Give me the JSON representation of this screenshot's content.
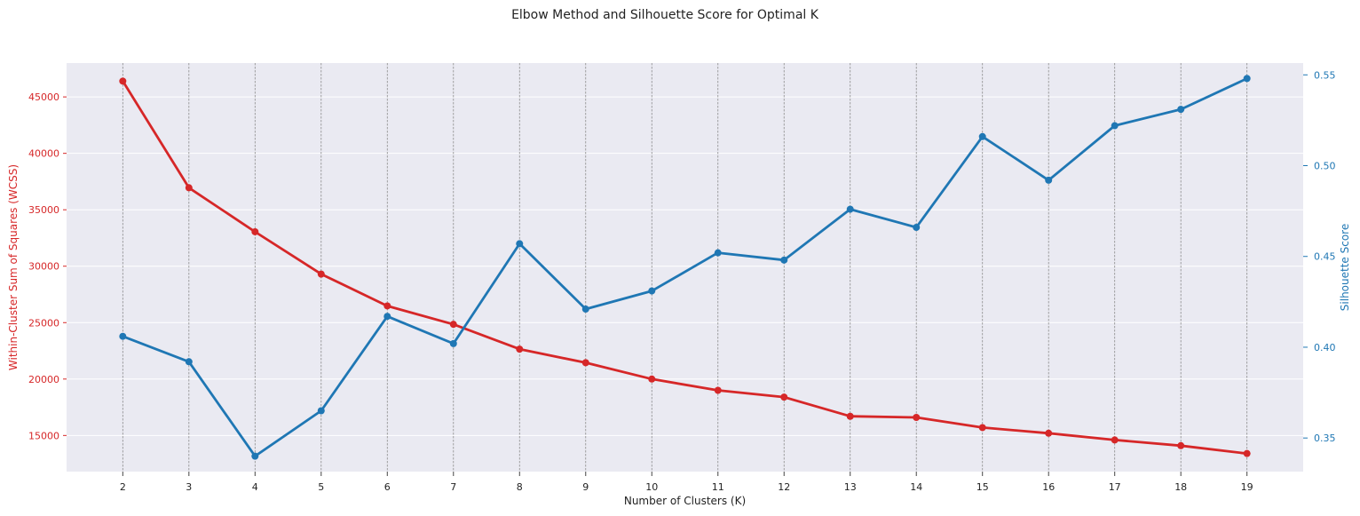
{
  "chart_data": {
    "type": "line",
    "title": "Elbow Method and Silhouette Score for Optimal K",
    "xlabel": "Number of Clusters (K)",
    "ylabel_left": "Within-Cluster Sum of Squares (WCSS)",
    "ylabel_right": "Silhouette Score",
    "x": [
      2,
      3,
      4,
      5,
      6,
      7,
      8,
      9,
      10,
      11,
      12,
      13,
      14,
      15,
      16,
      17,
      18,
      19
    ],
    "x_ticks": [
      "2",
      "3",
      "4",
      "5",
      "6",
      "7",
      "8",
      "9",
      "10",
      "11",
      "12",
      "13",
      "14",
      "15",
      "16",
      "17",
      "18",
      "19"
    ],
    "xlim": [
      1.15,
      19.85
    ],
    "ylim_left": [
      11800,
      48000
    ],
    "yticks_left": [
      "15000",
      "20000",
      "25000",
      "30000",
      "35000",
      "40000",
      "45000"
    ],
    "ylim_right": [
      0.3315,
      0.5565
    ],
    "yticks_right": [
      "0.35",
      "0.40",
      "0.45",
      "0.50",
      "0.55"
    ],
    "grid": true,
    "series": [
      {
        "axis": "left",
        "color": "#d62728",
        "values": [
          46400,
          36950,
          33050,
          29300,
          26480,
          24850,
          22650,
          21450,
          20000,
          19000,
          18400,
          16700,
          16600,
          15700,
          15200,
          14600,
          14100,
          13400
        ]
      },
      {
        "axis": "right",
        "color": "#1f77b4",
        "values": [
          0.406,
          0.392,
          0.34,
          0.365,
          0.417,
          0.402,
          0.457,
          0.421,
          0.431,
          0.452,
          0.448,
          0.476,
          0.466,
          0.516,
          0.492,
          0.522,
          0.531,
          0.548
        ]
      }
    ]
  },
  "colors": {
    "plot_background": "#eaeaf2",
    "grid": "#ffffff",
    "vertical_dashed": "#8c8c8c",
    "left_axis": "#d62728",
    "right_axis": "#1f77b4",
    "text": "#222222"
  }
}
